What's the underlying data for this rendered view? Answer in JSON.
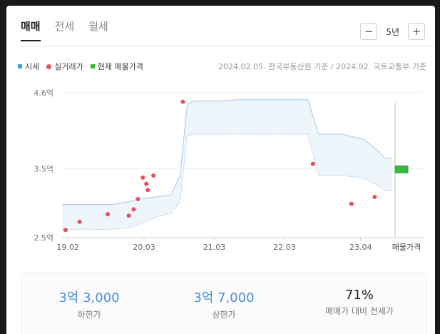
{
  "tabs": [
    {
      "label": "매매",
      "active": true
    },
    {
      "label": "전세",
      "active": false
    },
    {
      "label": "월세",
      "active": false
    }
  ],
  "period": {
    "minus": "−",
    "value": "5년",
    "plus": "+"
  },
  "legend": {
    "market": "시세",
    "deals": "실거래가",
    "listing": "현재 매물가격",
    "colors": {
      "market": "#4a9de8",
      "deals": "#e8505b",
      "listing": "#3cb83c"
    }
  },
  "source": "2024.02.05. 한국부동산원 기준 / 2024.02. 국토교통부 기준",
  "chart_data": {
    "type": "scatter",
    "y_unit": "억",
    "ylim": [
      2.5,
      4.6
    ],
    "y_ticks": [
      {
        "v": 4.6,
        "label": "4.6억"
      },
      {
        "v": 3.5,
        "label": "3.5억"
      },
      {
        "v": 2.5,
        "label": "2.5억"
      }
    ],
    "x_ticks": [
      {
        "t": 2019.083,
        "label": "19.02"
      },
      {
        "t": 2020.167,
        "label": "20.03"
      },
      {
        "t": 2021.167,
        "label": "21.03"
      },
      {
        "t": 2022.167,
        "label": "22.03"
      },
      {
        "t": 2023.25,
        "label": "23.04"
      }
    ],
    "listing_label": "매물가격",
    "market_band": {
      "t": [
        2019.0,
        2019.4,
        2019.7,
        2019.95,
        2020.1,
        2020.25,
        2020.4,
        2020.55,
        2020.68,
        2020.78,
        2020.86,
        2021.0,
        2021.2,
        2021.5,
        2022.0,
        2022.5,
        2022.65,
        2022.8,
        2023.0,
        2023.3,
        2023.5,
        2023.6,
        2023.7
      ],
      "upper": [
        2.98,
        2.98,
        2.98,
        3.02,
        3.06,
        3.08,
        3.1,
        3.12,
        3.4,
        4.42,
        4.48,
        4.48,
        4.48,
        4.5,
        4.5,
        4.5,
        4.0,
        4.0,
        4.0,
        3.92,
        3.76,
        3.65,
        3.65
      ],
      "lower": [
        2.62,
        2.62,
        2.62,
        2.64,
        2.7,
        2.76,
        2.82,
        2.85,
        3.02,
        3.98,
        4.0,
        4.0,
        4.0,
        4.0,
        4.0,
        4.0,
        3.4,
        3.4,
        3.4,
        3.36,
        3.25,
        3.18,
        3.18
      ]
    },
    "deals": [
      {
        "t": 2019.05,
        "v": 2.61
      },
      {
        "t": 2019.25,
        "v": 2.73
      },
      {
        "t": 2019.65,
        "v": 2.84
      },
      {
        "t": 2019.95,
        "v": 2.82
      },
      {
        "t": 2020.02,
        "v": 2.91
      },
      {
        "t": 2020.08,
        "v": 3.06
      },
      {
        "t": 2020.15,
        "v": 3.37
      },
      {
        "t": 2020.2,
        "v": 3.28
      },
      {
        "t": 2020.22,
        "v": 3.19
      },
      {
        "t": 2020.3,
        "v": 3.4
      },
      {
        "t": 2020.72,
        "v": 4.47
      },
      {
        "t": 2022.57,
        "v": 3.57
      },
      {
        "t": 2023.12,
        "v": 2.99
      },
      {
        "t": 2023.45,
        "v": 3.09
      }
    ],
    "listing_range": [
      3.44,
      3.54
    ]
  },
  "stats": [
    {
      "value": "3억 3,000",
      "label": "하한가"
    },
    {
      "value": "3억 7,000",
      "label": "상한가"
    },
    {
      "value": "71%",
      "label": "매매가 대비 전세가"
    }
  ]
}
